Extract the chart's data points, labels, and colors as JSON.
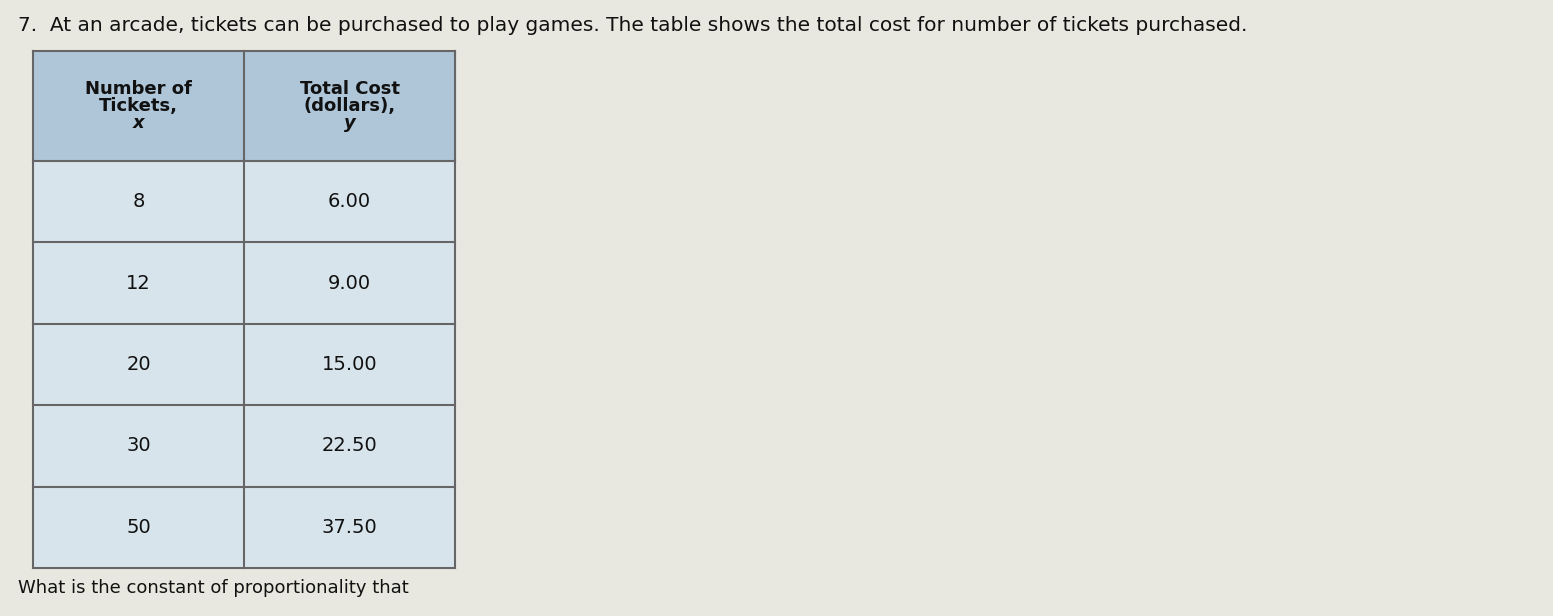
{
  "title_text": "7.  At an arcade, tickets can be purchased to play games. The table shows the total cost for number of tickets purchased.",
  "col1_header_line1": "Number of",
  "col1_header_line2": "Tickets,",
  "col1_header_line3": "x",
  "col2_header_line1": "Total Cost",
  "col2_header_line2": "(dollars),",
  "col2_header_line3": "y",
  "tickets": [
    "8",
    "12",
    "20",
    "30",
    "50"
  ],
  "costs": [
    "6.00",
    "9.00",
    "15.00",
    "22.50",
    "37.50"
  ],
  "question_text": "What is the constant of proportionality that",
  "header_bg_color": "#aec6d8",
  "row_bg_color": "#d8e4ec",
  "border_color": "#666666",
  "title_fontsize": 14.5,
  "header_fontsize": 13,
  "data_fontsize": 14,
  "question_fontsize": 13,
  "bg_color": "#e8e8e0"
}
